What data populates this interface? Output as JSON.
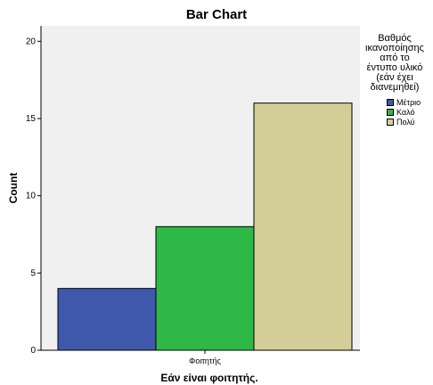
{
  "chart_data": {
    "type": "bar",
    "title": "Bar Chart",
    "xlabel": "Εάν είναι φοιτητής.",
    "ylabel": "Count",
    "categories": [
      "Φοιτητής"
    ],
    "ylim": [
      0,
      21
    ],
    "yticks": [
      0,
      5,
      10,
      15,
      20
    ],
    "grid": false,
    "legend_position": "right",
    "legend_title": "Βαθμός\nικανοποίησης\nαπό το\nέντυπο υλικό\n(εάν έχει\nδιανεμηθεί)",
    "series": [
      {
        "name": "Μέτριο",
        "values": [
          4
        ],
        "color": "#3e58ac"
      },
      {
        "name": "Καλό",
        "values": [
          8
        ],
        "color": "#2eb848"
      },
      {
        "name": "Πολύ",
        "values": [
          16
        ],
        "color": "#d3ce97"
      }
    ],
    "plot_background": "#f0f0f0"
  }
}
